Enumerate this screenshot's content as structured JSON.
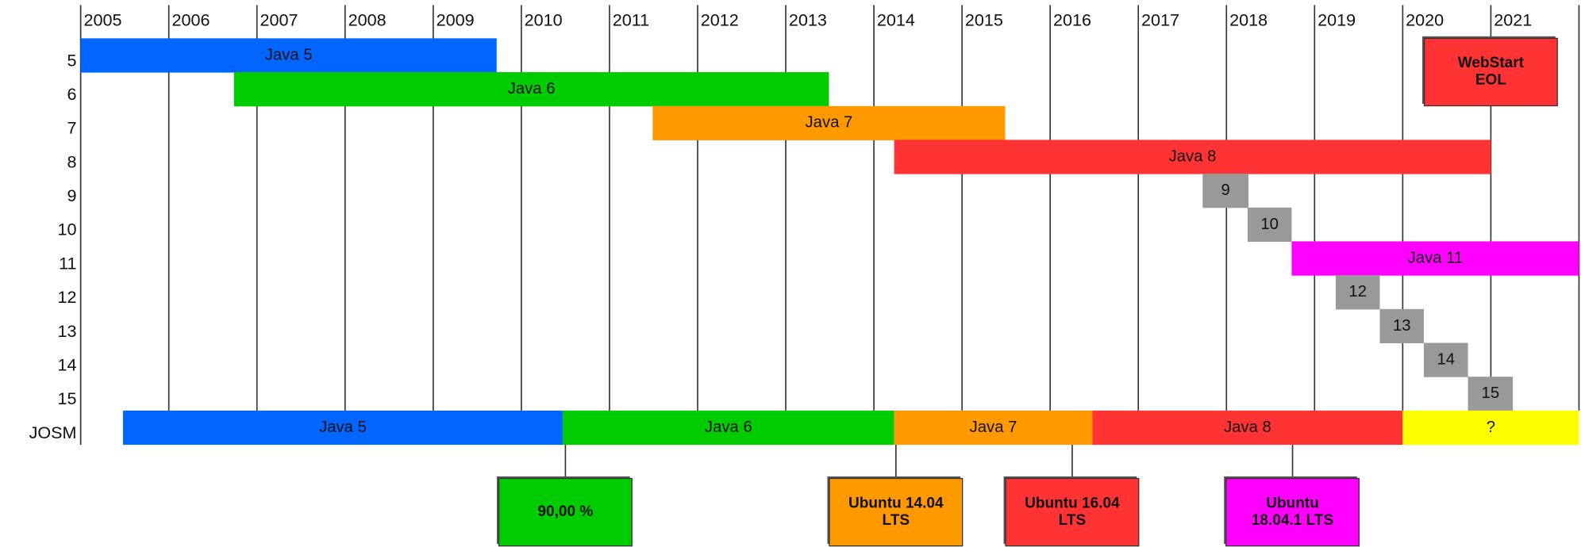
{
  "chart_data": {
    "type": "gantt",
    "xlim": [
      2005,
      2022
    ],
    "xticks": [
      2005,
      2006,
      2007,
      2008,
      2009,
      2010,
      2011,
      2012,
      2013,
      2014,
      2015,
      2016,
      2017,
      2018,
      2019,
      2020,
      2021
    ],
    "grid": true,
    "rows": [
      {
        "label": "5",
        "bars": [
          {
            "label": "Java 5",
            "start": 2005.0,
            "end": 2009.72,
            "color": "#0066ff"
          }
        ]
      },
      {
        "label": "6",
        "bars": [
          {
            "label": "Java 6",
            "start": 2006.74,
            "end": 2013.49,
            "color": "#00cc00"
          }
        ]
      },
      {
        "label": "7",
        "bars": [
          {
            "label": "Java 7",
            "start": 2011.49,
            "end": 2015.49,
            "color": "#ff9900"
          }
        ]
      },
      {
        "label": "8",
        "bars": [
          {
            "label": "Java 8",
            "start": 2014.23,
            "end": 2021.0,
            "color": "#ff3333"
          }
        ]
      },
      {
        "label": "9",
        "bars": [
          {
            "label": "9",
            "start": 2017.73,
            "end": 2018.25,
            "color": "#999999"
          }
        ]
      },
      {
        "label": "10",
        "bars": [
          {
            "label": "10",
            "start": 2018.24,
            "end": 2018.74,
            "color": "#999999"
          }
        ]
      },
      {
        "label": "11",
        "bars": [
          {
            "label": "Java 11",
            "start": 2018.74,
            "end": 2022.0,
            "color": "#ff00ff"
          }
        ]
      },
      {
        "label": "12",
        "bars": [
          {
            "label": "12",
            "start": 2019.24,
            "end": 2019.74,
            "color": "#999999"
          }
        ]
      },
      {
        "label": "13",
        "bars": [
          {
            "label": "13",
            "start": 2019.74,
            "end": 2020.24,
            "color": "#999999"
          }
        ]
      },
      {
        "label": "14",
        "bars": [
          {
            "label": "14",
            "start": 2020.24,
            "end": 2020.74,
            "color": "#999999"
          }
        ]
      },
      {
        "label": "15",
        "bars": [
          {
            "label": "15",
            "start": 2020.74,
            "end": 2021.25,
            "color": "#999999"
          }
        ]
      },
      {
        "label": "JOSM",
        "bars": [
          {
            "label": "Java 5",
            "start": 2005.48,
            "end": 2010.47,
            "color": "#0066ff"
          },
          {
            "label": "Java 6",
            "start": 2010.47,
            "end": 2014.23,
            "color": "#00cc00"
          },
          {
            "label": "Java 7",
            "start": 2014.23,
            "end": 2016.48,
            "color": "#ff9900"
          },
          {
            "label": "Java 8",
            "start": 2016.48,
            "end": 2020.0,
            "color": "#ff3333"
          },
          {
            "label": "?",
            "start": 2020.0,
            "end": 2022.0,
            "color": "#ffff00"
          }
        ]
      }
    ],
    "annotations": [
      {
        "text": [
          "WebStart",
          "EOL"
        ],
        "x": 2021.0,
        "position": "top",
        "color": "#ff3333"
      },
      {
        "text": [
          "90,00 %"
        ],
        "x": 2010.5,
        "position": "bottom",
        "color": "#00cc00"
      },
      {
        "text": [
          "Ubuntu 14.04",
          "LTS"
        ],
        "x": 2014.25,
        "position": "bottom",
        "color": "#ff9900"
      },
      {
        "text": [
          "Ubuntu 16.04",
          "LTS"
        ],
        "x": 2016.25,
        "position": "bottom",
        "color": "#ff3333"
      },
      {
        "text": [
          "Ubuntu",
          "18.04.1 LTS"
        ],
        "x": 2018.75,
        "position": "bottom",
        "color": "#ff00ff"
      }
    ]
  }
}
